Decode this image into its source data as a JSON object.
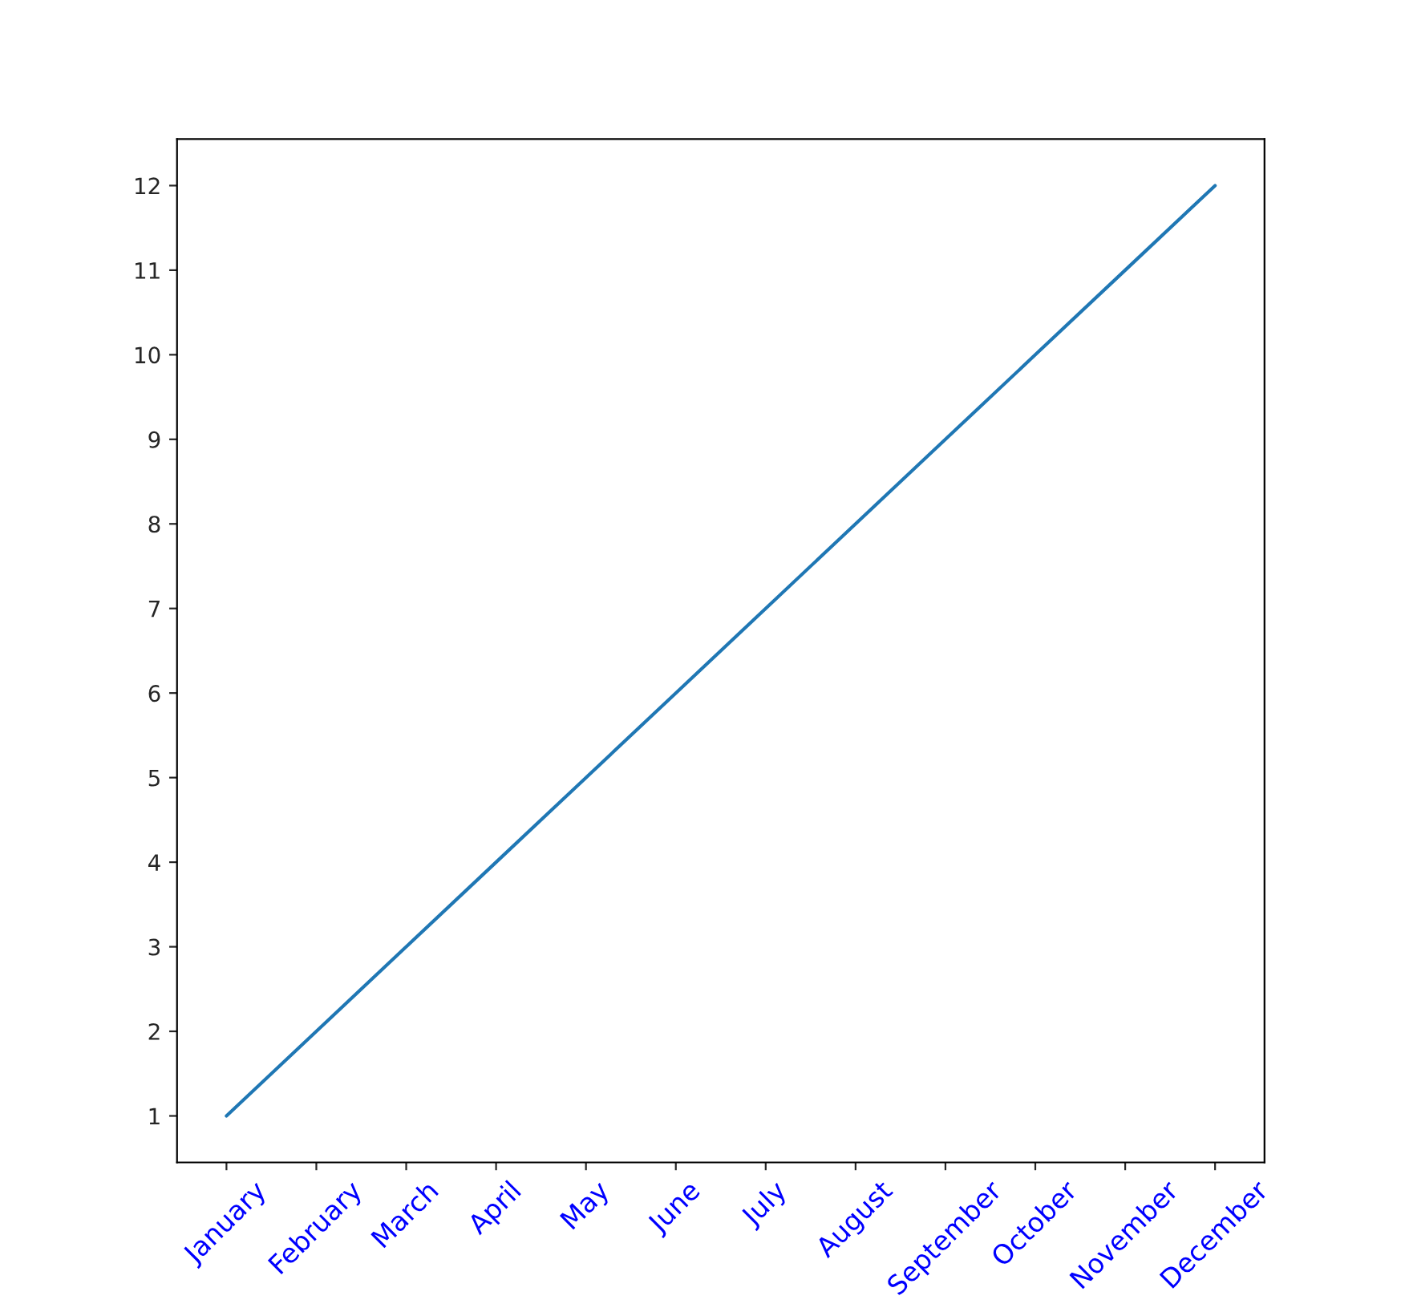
{
  "chart_data": {
    "type": "line",
    "categories": [
      "January",
      "February",
      "March",
      "April",
      "May",
      "June",
      "July",
      "August",
      "September",
      "October",
      "November",
      "December"
    ],
    "series": [
      {
        "color": "#1f77b4",
        "values": [
          1,
          2,
          3,
          4,
          5,
          6,
          7,
          8,
          9,
          10,
          11,
          12
        ]
      }
    ],
    "ylim": [
      0.45,
      12.55
    ],
    "yticks": [
      1,
      2,
      3,
      4,
      5,
      6,
      7,
      8,
      9,
      10,
      11,
      12
    ]
  }
}
